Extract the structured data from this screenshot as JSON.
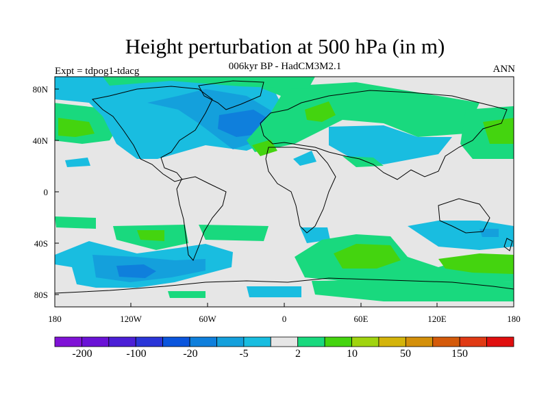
{
  "title": "Height perturbation at 500 hPa (in m)",
  "subtitle": "006kyr BP - HadCM3M2.1",
  "left_label": "Expt = tdpog1-tdacg",
  "right_label": "ANN",
  "y_axis": {
    "ticks": [
      "80N",
      "40N",
      "0",
      "40S",
      "80S"
    ]
  },
  "x_axis": {
    "ticks": [
      "180",
      "120W",
      "60W",
      "0",
      "60E",
      "120E",
      "180"
    ]
  },
  "colorbar": {
    "colors": [
      "#7f12d6",
      "#6a12d6",
      "#4b1fd6",
      "#2a35d8",
      "#0a55dd",
      "#0f7fdc",
      "#14a0dc",
      "#19bde0",
      "#e6e6e6",
      "#19d97e",
      "#44d40f",
      "#a0d40f",
      "#d4b40a",
      "#d4900a",
      "#d45a0a",
      "#e03a14",
      "#e00f0f"
    ],
    "labels": [
      "-200",
      "-100",
      "-20",
      "-5",
      "2",
      "10",
      "50",
      "150"
    ]
  },
  "map_colors": {
    "ocean_bg": "#e6e6e6",
    "light_blue": "#19bde0",
    "mid_blue": "#14a0dc",
    "dark_blue": "#0f7fdc",
    "green": "#19d97e",
    "dark_green": "#44d40f",
    "coastline": "#000000"
  }
}
